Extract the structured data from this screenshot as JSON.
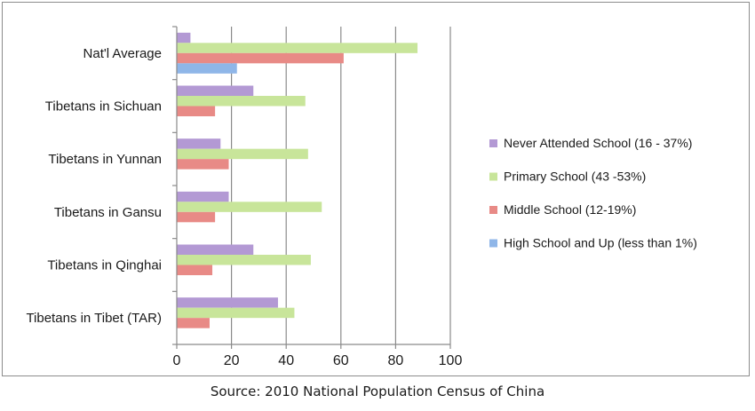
{
  "chart_data": {
    "type": "bar",
    "orientation": "horizontal",
    "categories": [
      "Nat'l Average",
      "Tibetans in Sichuan",
      "Tibetans in Yunnan",
      "Tibetans in Gansu",
      "Tibetans in Qinghai",
      "Tibetans in Tibet (TAR)"
    ],
    "series": [
      {
        "name": "Never Attended School (16 - 37%)",
        "color": "#b399d4",
        "values": [
          5,
          28,
          16,
          19,
          28,
          37
        ]
      },
      {
        "name": "Primary School (43 -53%)",
        "color": "#c8e59a",
        "values": [
          88,
          47,
          48,
          53,
          49,
          43
        ]
      },
      {
        "name": "Middle School (12-19%)",
        "color": "#e88a86",
        "values": [
          61,
          14,
          19,
          14,
          13,
          12
        ]
      },
      {
        "name": "High School and Up (less than 1%)",
        "color": "#8fb6e8",
        "values": [
          22,
          null,
          null,
          null,
          null,
          null
        ]
      }
    ],
    "xlim": [
      0,
      100
    ],
    "ticks": [
      "0",
      "20",
      "40",
      "60",
      "80",
      "100"
    ],
    "grid": "vertical",
    "legend_position": "right",
    "title": "",
    "xlabel": "",
    "ylabel": ""
  },
  "source": "Source: 2010 National Population Census of China"
}
